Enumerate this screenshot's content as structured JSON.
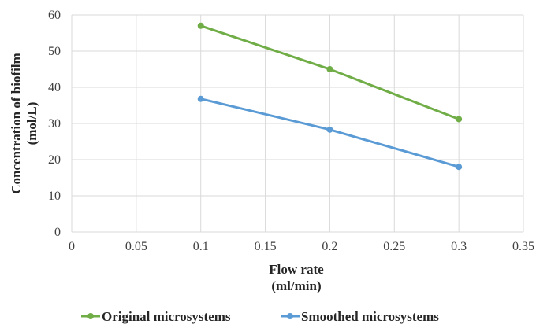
{
  "chart_data": {
    "type": "line",
    "title": "",
    "xlabel": [
      "Flow rate",
      "(ml/min)"
    ],
    "ylabel": [
      "Concentration of biofilm",
      "(mol/L)"
    ],
    "xlim": [
      0,
      0.35
    ],
    "ylim": [
      0,
      60
    ],
    "x_ticks": [
      "0",
      "0.05",
      "0.1",
      "0.15",
      "0.2",
      "0.25",
      "0.3",
      "0.35"
    ],
    "y_ticks": [
      "0",
      "10",
      "20",
      "30",
      "40",
      "50",
      "60"
    ],
    "x": [
      0.1,
      0.2,
      0.3
    ],
    "series": [
      {
        "name": "Original microsystems",
        "values": [
          57,
          45,
          31.2
        ],
        "color": "#70ad47"
      },
      {
        "name": "Smoothed microsystems",
        "values": [
          36.8,
          28.3,
          18
        ],
        "color": "#5b9bd5"
      }
    ],
    "grid": true,
    "legend_position": "bottom",
    "gridline_color": "#d9d9d9"
  }
}
